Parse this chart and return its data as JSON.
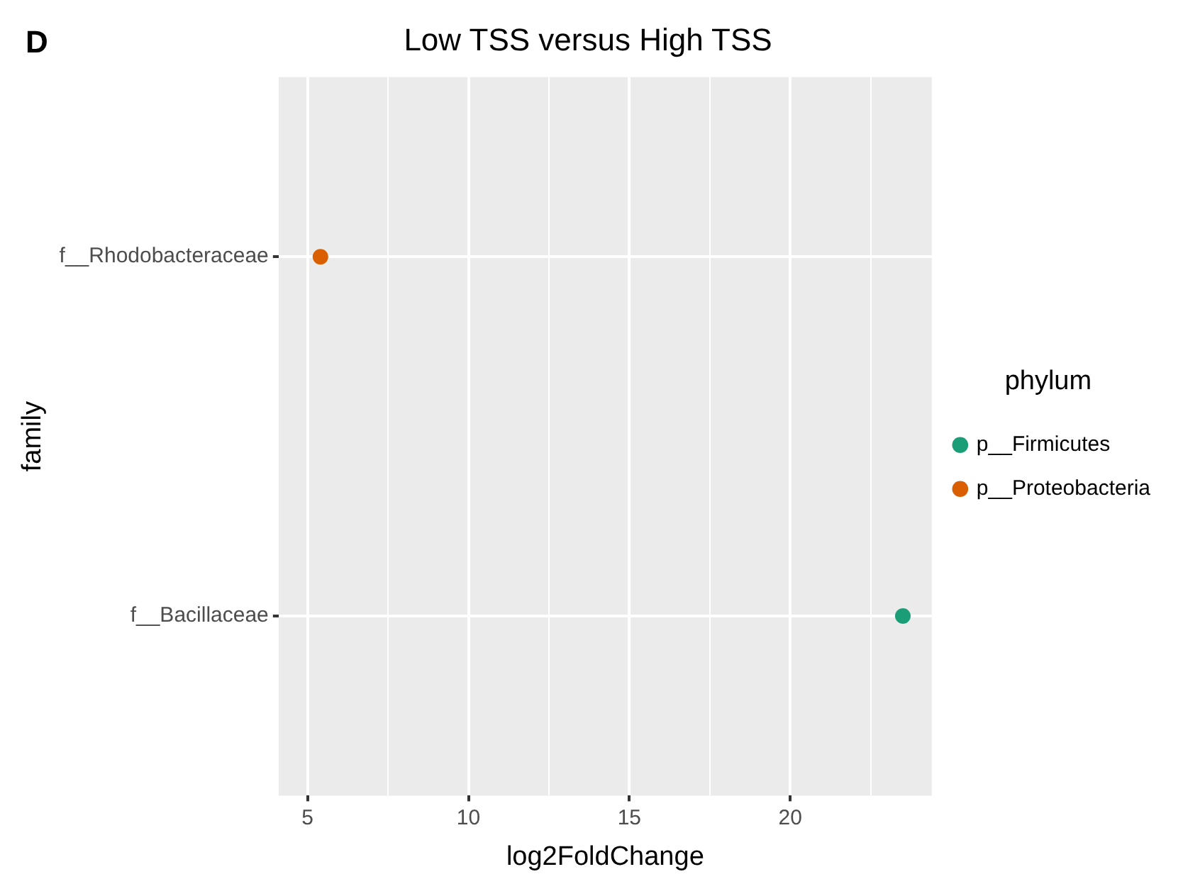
{
  "chart_data": {
    "type": "scatter",
    "orientation": "horizontal",
    "title": "Low TSS versus High TSS",
    "xlabel": "log2FoldChange",
    "ylabel": "family",
    "legend_title": "phylum",
    "annotations": [
      "D"
    ],
    "categories": [
      "f__Rhodobacteraceae",
      "f__Bacillaceae"
    ],
    "series": [
      {
        "name": "p__Firmicutes",
        "color": "#1b9e77",
        "values": [
          null,
          23.5
        ]
      },
      {
        "name": "p__Proteobacteria",
        "color": "#d95f02",
        "values": [
          5.4,
          null
        ]
      }
    ],
    "xlim": [
      4.1,
      24.4
    ],
    "xticks": [
      5,
      {
        "value": 7.5,
        "label": null
      },
      10,
      {
        "value": 12.5,
        "label": null
      },
      15,
      {
        "value": 17.5,
        "label": null
      },
      20,
      {
        "value": 22.5,
        "label": null
      }
    ],
    "grid": true,
    "legend": "right",
    "marker": "circle"
  }
}
